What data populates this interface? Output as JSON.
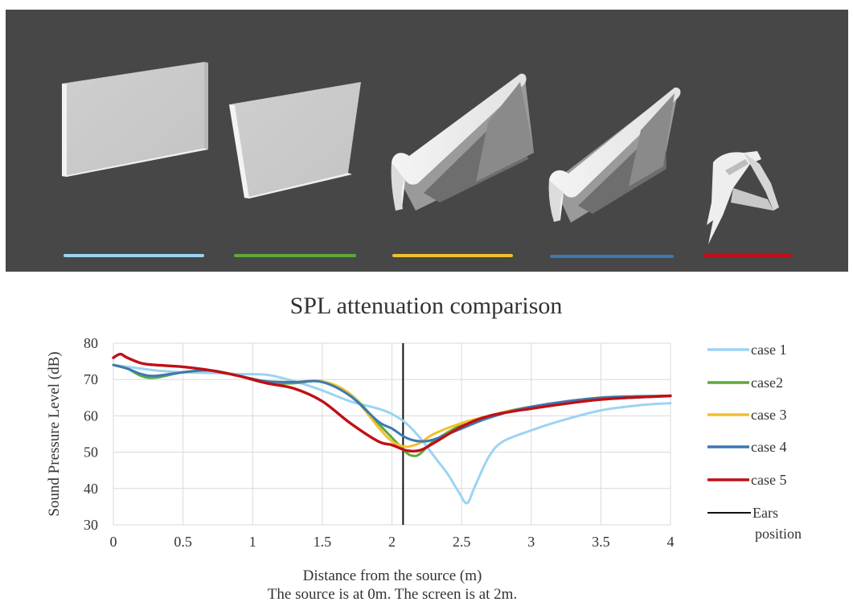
{
  "colors": {
    "panel_background": "#474747",
    "case_1": "#9dd3f2",
    "case_2": "#5ea83a",
    "case_3": "#f2c02d",
    "case_4": "#3b79b3",
    "case_5": "#c00f16",
    "ears_position": "#111111",
    "grid": "#d9d9d9"
  },
  "illustration": {
    "models": [
      "flat-panel",
      "tilted-panel",
      "curved-barrier",
      "curved-barrier-variant",
      "ear-shell"
    ]
  },
  "chart_data": {
    "type": "line",
    "title": "SPL attenuation  comparison",
    "xlabel": "Distance  from  the source (m)",
    "caption": "The source is at 0m.  The screen is at 2m.",
    "ylabel": "Sound Pressure Level  (dB)",
    "xlim": [
      0,
      4
    ],
    "ylim": [
      30,
      80
    ],
    "x_ticks": [
      "0",
      "0.5",
      "1",
      "1.5",
      "2",
      "2.5",
      "3",
      "3.5",
      "4"
    ],
    "y_ticks": [
      "30",
      "40",
      "50",
      "60",
      "70",
      "80"
    ],
    "grid": true,
    "legend_position": "right",
    "ears_position_x": 2.08,
    "series": [
      {
        "name": "case  1",
        "color": "#9dd3f2",
        "x": [
          0,
          0.1,
          0.2,
          0.3,
          0.5,
          0.7,
          0.9,
          1.1,
          1.3,
          1.5,
          1.7,
          1.9,
          2.0,
          2.1,
          2.2,
          2.3,
          2.4,
          2.48,
          2.54,
          2.6,
          2.7,
          2.8,
          3.0,
          3.2,
          3.5,
          3.8,
          4.0
        ],
        "y": [
          74,
          73.5,
          73,
          72.5,
          72,
          71.8,
          71.5,
          71.3,
          69.5,
          67,
          64,
          62,
          60.5,
          58,
          54,
          49,
          44,
          39,
          36,
          41,
          49,
          53,
          56,
          58.5,
          61.5,
          63,
          63.5
        ]
      },
      {
        "name": "case2",
        "color": "#5ea83a",
        "x": [
          0,
          0.1,
          0.2,
          0.3,
          0.5,
          0.7,
          0.9,
          1.1,
          1.3,
          1.5,
          1.7,
          1.9,
          2.0,
          2.1,
          2.15,
          2.2,
          2.3,
          2.5,
          2.7,
          3.0,
          3.5,
          4.0
        ],
        "y": [
          74,
          73,
          71,
          70.5,
          72,
          72.5,
          71,
          69,
          69,
          69.5,
          66,
          58,
          54,
          50,
          49,
          49.5,
          53,
          57.5,
          60,
          62.5,
          64.5,
          65.5
        ]
      },
      {
        "name": "case  3",
        "color": "#f2c02d",
        "x": [
          0,
          0.1,
          0.2,
          0.3,
          0.5,
          0.7,
          0.9,
          1.1,
          1.3,
          1.5,
          1.7,
          1.9,
          2.0,
          2.1,
          2.2,
          2.3,
          2.5,
          2.7,
          3.0,
          3.5,
          4.0
        ],
        "y": [
          74,
          73,
          71.5,
          71,
          72,
          72.5,
          71,
          69.5,
          69.3,
          69.5,
          66,
          57,
          53,
          51.5,
          52.5,
          55,
          58,
          60,
          62.5,
          65,
          65.5
        ]
      },
      {
        "name": "case  4",
        "color": "#3b79b3",
        "x": [
          0,
          0.1,
          0.2,
          0.3,
          0.5,
          0.7,
          0.9,
          1.1,
          1.3,
          1.5,
          1.7,
          1.9,
          2.0,
          2.1,
          2.2,
          2.3,
          2.5,
          2.7,
          3.0,
          3.5,
          4.0
        ],
        "y": [
          74,
          73,
          71.5,
          71,
          72,
          72.5,
          71,
          69.5,
          69.3,
          69.3,
          65.5,
          58.5,
          56.5,
          54,
          53,
          53.5,
          56.5,
          59.5,
          62.5,
          65,
          65.5
        ]
      },
      {
        "name": "case  5",
        "color": "#c00f16",
        "x": [
          0,
          0.05,
          0.1,
          0.2,
          0.3,
          0.5,
          0.7,
          0.9,
          1.1,
          1.3,
          1.5,
          1.7,
          1.9,
          2.0,
          2.1,
          2.2,
          2.3,
          2.5,
          2.7,
          3.0,
          3.5,
          4.0
        ],
        "y": [
          76,
          77,
          76,
          74.5,
          74,
          73.5,
          72.5,
          71,
          69,
          67.5,
          64,
          58,
          53,
          52,
          50.5,
          50.5,
          52.5,
          57,
          60,
          62,
          64.5,
          65.5
        ]
      }
    ],
    "legend": [
      {
        "label": "case  1",
        "color": "#9dd3f2"
      },
      {
        "label": "case2",
        "color": "#5ea83a"
      },
      {
        "label": "case  3",
        "color": "#f2c02d"
      },
      {
        "label": "case  4",
        "color": "#3b79b3"
      },
      {
        "label": "case  5",
        "color": "#c00f16"
      },
      {
        "label": "Ears",
        "label2": "position",
        "color": "#111111"
      }
    ]
  }
}
